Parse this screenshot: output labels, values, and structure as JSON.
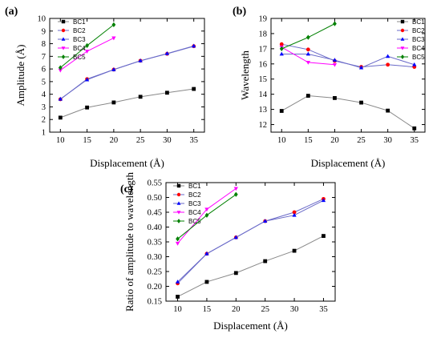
{
  "colors": {
    "BC1": "#000000",
    "BC2": "#ff0000",
    "BC3": "#0000ff",
    "BC4": "#ff00ff",
    "BC5": "#008000"
  },
  "markers": {
    "BC1": "square",
    "BC2": "circle",
    "BC3": "triangle-up",
    "BC4": "triangle-down",
    "BC5": "diamond"
  },
  "line_colors": {
    "BC1": "#888888",
    "BC2": "#6a6ac8",
    "BC3": "#6a6ac8",
    "BC4": "#ff00ff",
    "BC5": "#008000"
  },
  "chart_data": [
    {
      "id": "a",
      "panel_label": "(a)",
      "type": "line",
      "xlabel": "Displacement (Å)",
      "ylabel": "Amplitude (Å)",
      "xlim": [
        8,
        37
      ],
      "ylim": [
        1,
        10
      ],
      "xticks": [
        10,
        15,
        20,
        25,
        30,
        35
      ],
      "yticks": [
        1,
        2,
        3,
        4,
        5,
        6,
        7,
        8,
        9,
        10
      ],
      "legend_position": "top-left",
      "series": [
        {
          "name": "BC1",
          "x": [
            10,
            15,
            20,
            25,
            30,
            35
          ],
          "y": [
            2.15,
            2.95,
            3.35,
            3.8,
            4.12,
            4.42
          ]
        },
        {
          "name": "BC2",
          "x": [
            10,
            15,
            20,
            25,
            30,
            35
          ],
          "y": [
            3.6,
            5.2,
            5.95,
            6.65,
            7.2,
            7.8
          ]
        },
        {
          "name": "BC3",
          "x": [
            10,
            15,
            20,
            25,
            30,
            35
          ],
          "y": [
            3.62,
            5.15,
            5.95,
            6.65,
            7.22,
            7.82
          ]
        },
        {
          "name": "BC4",
          "x": [
            10,
            15,
            20
          ],
          "y": [
            5.9,
            7.4,
            8.45
          ]
        },
        {
          "name": "BC5",
          "x": [
            10,
            15,
            20
          ],
          "y": [
            6.1,
            7.85,
            9.5
          ]
        }
      ]
    },
    {
      "id": "b",
      "panel_label": "(b)",
      "type": "line",
      "xlabel": "Displacement (Å)",
      "ylabel": "Wavelength",
      "xlim": [
        8,
        37
      ],
      "ylim": [
        11.5,
        19
      ],
      "xticks": [
        10,
        15,
        20,
        25,
        30,
        35
      ],
      "yticks": [
        12,
        13,
        14,
        15,
        16,
        17,
        18,
        19
      ],
      "legend_position": "top-right",
      "series": [
        {
          "name": "BC1",
          "x": [
            10,
            15,
            20,
            25,
            30,
            35
          ],
          "y": [
            12.9,
            13.9,
            13.75,
            13.45,
            12.92,
            11.75
          ]
        },
        {
          "name": "BC2",
          "x": [
            10,
            15,
            20,
            25,
            30,
            35
          ],
          "y": [
            17.3,
            16.95,
            16.2,
            15.8,
            15.95,
            15.8
          ]
        },
        {
          "name": "BC3",
          "x": [
            10,
            15,
            20,
            25,
            30,
            35
          ],
          "y": [
            16.65,
            16.65,
            16.25,
            15.75,
            16.5,
            15.95
          ]
        },
        {
          "name": "BC4",
          "x": [
            10,
            15,
            20
          ],
          "y": [
            17.1,
            16.1,
            15.95
          ]
        },
        {
          "name": "BC5",
          "x": [
            10,
            15,
            20
          ],
          "y": [
            17.0,
            17.75,
            18.65
          ]
        }
      ]
    },
    {
      "id": "c",
      "panel_label": "(c)",
      "type": "line",
      "xlabel": "Displacement (Å)",
      "ylabel": "Ratio of amplitude to wavelength",
      "xlim": [
        8,
        37
      ],
      "ylim": [
        0.15,
        0.55
      ],
      "xticks": [
        10,
        15,
        20,
        25,
        30,
        35
      ],
      "yticks": [
        0.15,
        0.2,
        0.25,
        0.3,
        0.35,
        0.4,
        0.45,
        0.5,
        0.55
      ],
      "ytick_labels": [
        "0.15",
        "0.20",
        "0.25",
        "0.30",
        "0.35",
        "0.40",
        "0.45",
        "0.50",
        "0.55"
      ],
      "legend_position": "top-left",
      "series": [
        {
          "name": "BC1",
          "x": [
            10,
            15,
            20,
            25,
            30,
            35
          ],
          "y": [
            0.165,
            0.215,
            0.245,
            0.285,
            0.32,
            0.37
          ]
        },
        {
          "name": "BC2",
          "x": [
            10,
            15,
            20,
            25,
            30,
            35
          ],
          "y": [
            0.21,
            0.31,
            0.365,
            0.42,
            0.45,
            0.495
          ]
        },
        {
          "name": "BC3",
          "x": [
            10,
            15,
            20,
            25,
            30,
            35
          ],
          "y": [
            0.215,
            0.31,
            0.365,
            0.42,
            0.44,
            0.49
          ]
        },
        {
          "name": "BC4",
          "x": [
            10,
            15,
            20
          ],
          "y": [
            0.345,
            0.46,
            0.53
          ]
        },
        {
          "name": "BC5",
          "x": [
            10,
            15,
            20
          ],
          "y": [
            0.36,
            0.44,
            0.51
          ]
        }
      ]
    }
  ]
}
